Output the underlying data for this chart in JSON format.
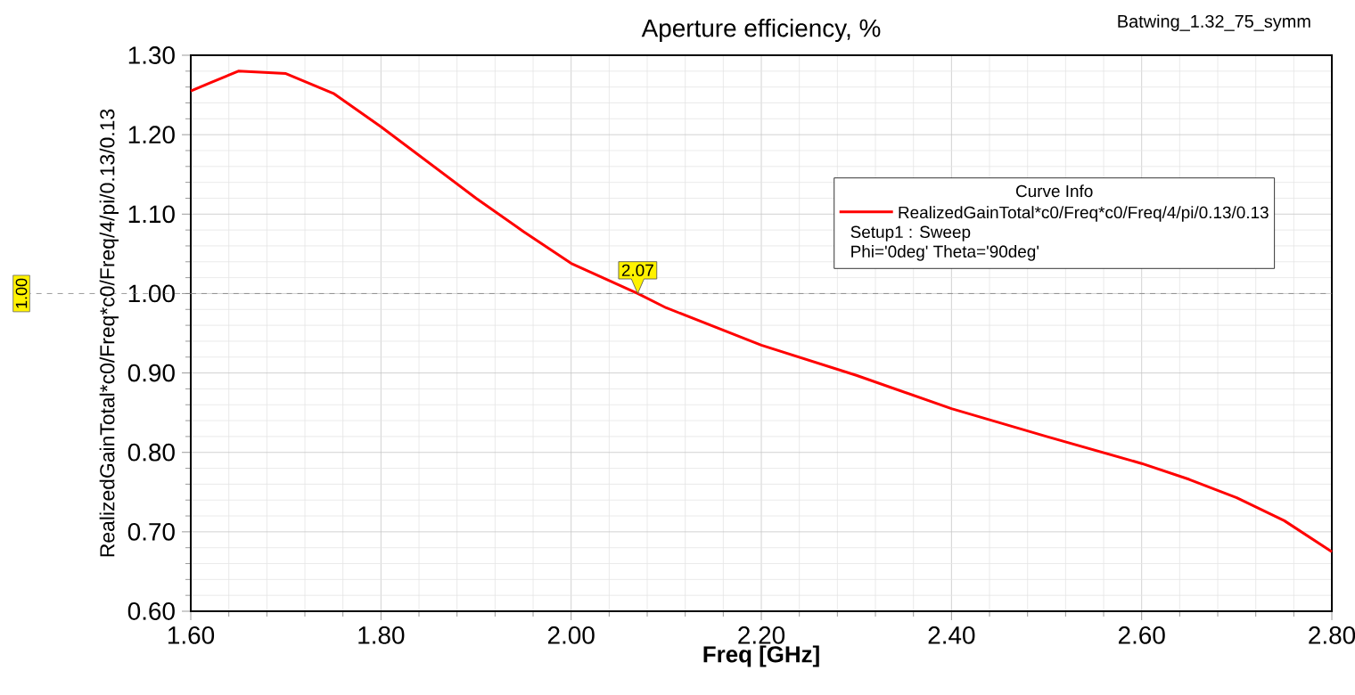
{
  "chart_data": {
    "type": "line",
    "title": "Aperture efficiency, %",
    "xlabel": "Freq [GHz]",
    "ylabel": "RealizedGainTotal*c0/Freq*c0/Freq/4/pi/0.13/0.13",
    "legend_title": "Curve Info",
    "x": [
      1.6,
      1.62,
      1.65,
      1.7,
      1.75,
      1.8,
      1.85,
      1.9,
      1.95,
      2.0,
      2.07,
      2.1,
      2.2,
      2.3,
      2.4,
      2.5,
      2.6,
      2.65,
      2.7,
      2.75,
      2.8
    ],
    "series": [
      {
        "name": "RealizedGainTotal*c0/Freq*c0/Freq/4/pi/0.13/0.13",
        "color": "#ff0000",
        "values": [
          1.255,
          1.265,
          1.28,
          1.277,
          1.252,
          1.21,
          1.165,
          1.12,
          1.078,
          1.038,
          1.0,
          0.982,
          0.935,
          0.897,
          0.855,
          0.82,
          0.786,
          0.766,
          0.743,
          0.714,
          0.675
        ]
      }
    ],
    "xlim": [
      1.6,
      2.8
    ],
    "ylim": [
      0.6,
      1.3
    ],
    "xticks": [
      {
        "value": 1.6,
        "label": "1.60"
      },
      {
        "value": 1.8,
        "label": "1.80"
      },
      {
        "value": 2.0,
        "label": "2.00"
      },
      {
        "value": 2.2,
        "label": "2.20"
      },
      {
        "value": 2.4,
        "label": "2.40"
      },
      {
        "value": 2.6,
        "label": "2.60"
      },
      {
        "value": 2.8,
        "label": "2.80"
      }
    ],
    "yticks": [
      {
        "value": 0.6,
        "label": "0.60"
      },
      {
        "value": 0.7,
        "label": "0.70"
      },
      {
        "value": 0.8,
        "label": "0.80"
      },
      {
        "value": 0.9,
        "label": "0.90"
      },
      {
        "value": 1.0,
        "label": "1.00"
      },
      {
        "value": 1.1,
        "label": "1.10"
      },
      {
        "value": 1.2,
        "label": "1.20"
      },
      {
        "value": 1.3,
        "label": "1.30"
      }
    ],
    "ref_lines": [
      {
        "axis": "y",
        "value": 1.0,
        "label": "1.00",
        "color": "#808080",
        "line_style": "dashed"
      }
    ],
    "annotations": [
      {
        "text": "2.07",
        "x": 2.07,
        "y": 1.0
      },
      "Batwing_1.32_75_symm",
      "Setup1 : Sweep",
      "Phi='0deg' Theta='90deg'"
    ],
    "grid": true,
    "legend": "right",
    "marker": "none",
    "line_style": "solid"
  }
}
